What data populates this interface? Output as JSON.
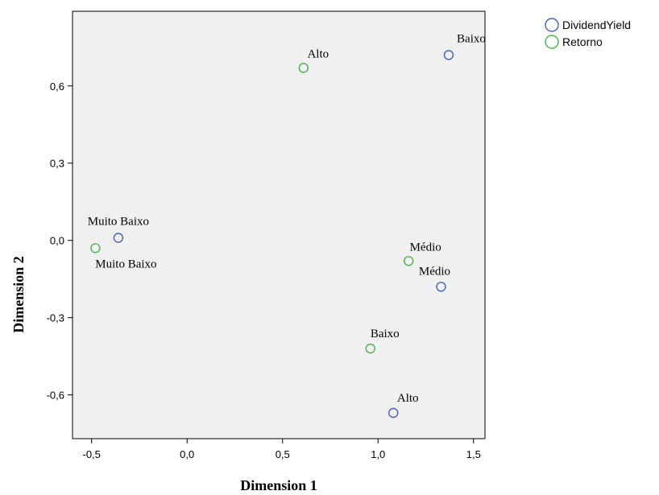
{
  "chart_data": {
    "type": "scatter",
    "xlabel": "Dimension 1",
    "ylabel": "Dimension 2",
    "xlim": [
      -0.6,
      1.56
    ],
    "ylim": [
      -0.77,
      0.89
    ],
    "xticks": [
      -0.5,
      0.0,
      0.5,
      1.0,
      1.5
    ],
    "xtick_labels": [
      "-0,5",
      "0,0",
      "0,5",
      "1,0",
      "1,5"
    ],
    "yticks": [
      -0.6,
      -0.3,
      0.0,
      0.3,
      0.6
    ],
    "ytick_labels": [
      "-0,6",
      "-0,3",
      "0,0",
      "0,3",
      "0,6"
    ],
    "grid": false,
    "plot_background": "#f0f0f0",
    "legend_position": "top-right outside",
    "series": [
      {
        "name": "DividendYield",
        "color": "#4a5fb8",
        "points": [
          {
            "label": "Baixo",
            "x": 1.37,
            "y": 0.72
          },
          {
            "label": "Muito Baixo",
            "x": -0.36,
            "y": 0.01
          },
          {
            "label": "Médio",
            "x": 1.33,
            "y": -0.18
          },
          {
            "label": "Alto",
            "x": 1.08,
            "y": -0.67
          }
        ]
      },
      {
        "name": "Retorno",
        "color": "#4caf50",
        "points": [
          {
            "label": "Alto",
            "x": 0.61,
            "y": 0.67
          },
          {
            "label": "Muito Baixo",
            "x": -0.48,
            "y": -0.03
          },
          {
            "label": "Médio",
            "x": 1.16,
            "y": -0.08
          },
          {
            "label": "Baixo",
            "x": 0.96,
            "y": -0.42
          }
        ]
      }
    ]
  }
}
